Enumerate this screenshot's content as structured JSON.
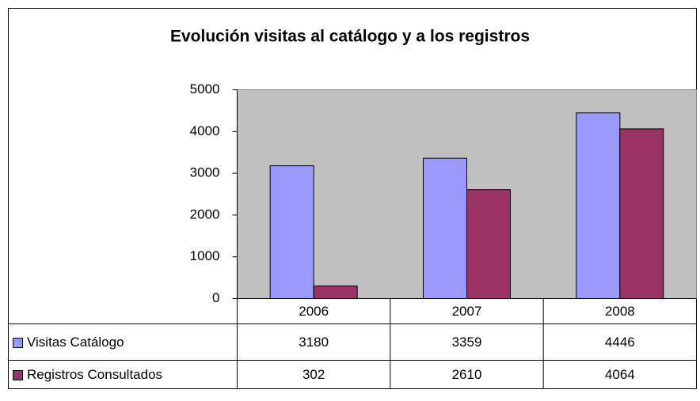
{
  "chart_data": {
    "type": "bar",
    "title": "Evolución visitas al catálogo y a los registros",
    "categories": [
      "2006",
      "2007",
      "2008"
    ],
    "series": [
      {
        "name": "Visitas Catálogo",
        "color": "#9999ff",
        "values": [
          3180,
          3359,
          4446
        ]
      },
      {
        "name": "Registros Consultados",
        "color": "#993366",
        "values": [
          302,
          2610,
          4064
        ]
      }
    ],
    "ylim": [
      0,
      5000
    ],
    "yticks": [
      0,
      1000,
      2000,
      3000,
      4000,
      5000
    ],
    "grid": false
  }
}
